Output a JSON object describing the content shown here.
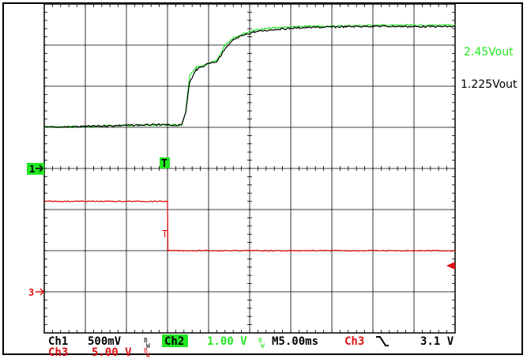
{
  "chart_data": {
    "type": "line",
    "title": "",
    "grid": true,
    "x_unit": "ms",
    "xlim": [
      0,
      50
    ],
    "x_divisions": 10,
    "y_divisions": 8,
    "trigger_time_ms": 15.0,
    "series": [
      {
        "name": "2.45Vout",
        "channel": "Ch2",
        "color": "#22e622",
        "unit": "V",
        "baseline_div": 5.0,
        "points": [
          [
            0,
            0.0
          ],
          [
            5,
            0.02
          ],
          [
            10,
            0.05
          ],
          [
            14,
            0.06
          ],
          [
            16.7,
            0.05
          ],
          [
            17.2,
            0.35
          ],
          [
            17.7,
            1.25
          ],
          [
            18.5,
            1.45
          ],
          [
            20,
            1.55
          ],
          [
            21,
            1.62
          ],
          [
            22,
            2.0
          ],
          [
            23,
            2.18
          ],
          [
            24,
            2.26
          ],
          [
            25.5,
            2.36
          ],
          [
            28,
            2.42
          ],
          [
            31,
            2.45
          ],
          [
            35,
            2.46
          ],
          [
            40,
            2.48
          ],
          [
            45,
            2.48
          ],
          [
            50,
            2.48
          ]
        ]
      },
      {
        "name": "1.225Vout",
        "channel": "Ch1",
        "color": "#000000",
        "unit": "V",
        "baseline_div": 5.0,
        "points": [
          [
            0,
            0.0
          ],
          [
            5,
            0.01
          ],
          [
            10,
            0.025
          ],
          [
            14,
            0.03
          ],
          [
            16.7,
            0.025
          ],
          [
            17.2,
            0.18
          ],
          [
            17.7,
            0.55
          ],
          [
            18.5,
            0.7
          ],
          [
            20,
            0.78
          ],
          [
            21,
            0.8
          ],
          [
            22,
            0.95
          ],
          [
            23,
            1.06
          ],
          [
            24,
            1.11
          ],
          [
            25.5,
            1.16
          ],
          [
            28,
            1.19
          ],
          [
            31,
            1.21
          ],
          [
            35,
            1.22
          ],
          [
            40,
            1.23
          ],
          [
            45,
            1.225
          ],
          [
            50,
            1.225
          ]
        ]
      },
      {
        "name": "Ch3",
        "channel": "Ch3",
        "color": "#dd1111",
        "unit": "V",
        "baseline_div": 2.0,
        "points": [
          [
            0,
            6.0
          ],
          [
            15.0,
            6.0
          ],
          [
            15.05,
            0.0
          ],
          [
            50,
            0.0
          ]
        ]
      }
    ],
    "annotations": {
      "ch2_label": "2.45Vout",
      "ch1_label": "1.225Vout"
    }
  },
  "markers": {
    "ch1_ground": "1",
    "ch3_ground": "3",
    "trigger": "T"
  },
  "status_bar": {
    "row1": {
      "ch1": "Ch1",
      "ch1_scale": "500mV",
      "bw1": "B_W",
      "ch2": "Ch2",
      "ch2_scale": "1.00 V",
      "bw2": "B_W",
      "timebase": "M5.00ms",
      "trig_source": "Ch3",
      "trig_slope": "╲",
      "trig_level": "3.1 V"
    },
    "row2": {
      "ch3": "Ch3",
      "ch3_scale": "5.00 V",
      "bw3": "B_W"
    }
  },
  "colors": {
    "ch1": "#000000",
    "ch2": "#22e622",
    "ch3": "#dd1111",
    "grid": "#000000",
    "background": "#ffffff"
  }
}
